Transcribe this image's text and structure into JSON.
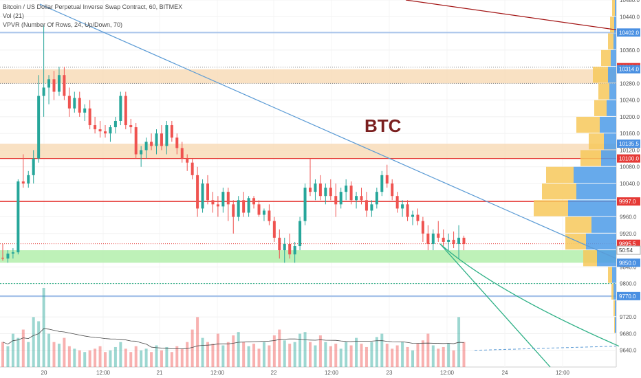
{
  "header": {
    "symbol_line": "Bitcoin / US Dollar Perpetual Inverse Swap Contract, 60, BITMEX",
    "vol_line": "Vol (21)",
    "vpvr_line": "VPVR (Number Of Rows, 24, Up/Down, 70)"
  },
  "annotation": {
    "text": "BTC"
  },
  "colors": {
    "up": "#26a69a",
    "down": "#ef5350",
    "support_fill": "#b7f0b0",
    "resistance_fill": "#f8dcb8",
    "trendline": "#5b9bd5",
    "red_line": "#e53935",
    "dark_red_line": "#a31515",
    "blue_line": "#a9c4ea",
    "green_line": "#2eb086"
  },
  "chart_data": {
    "type": "candlestick",
    "title": "Bitcoin / US Dollar Perpetual Inverse Swap Contract, 60, BITMEX",
    "ylim": [
      9600,
      10480
    ],
    "y_ticks": [
      "10480.0",
      "10440.0",
      "10360.0",
      "10280.0",
      "10240.0",
      "10200.0",
      "10160.0",
      "10120.0",
      "10080.0",
      "10040.0",
      "9960.0",
      "9920.0",
      "9840.0",
      "9800.0",
      "9720.0",
      "9680.0",
      "9640.0"
    ],
    "x_ticks": [
      "20",
      "12:00",
      "21",
      "12:00",
      "22",
      "12:00",
      "23",
      "12:00",
      "24",
      "12:00"
    ],
    "price_tags": [
      {
        "label": "10402.0",
        "kind": "blue"
      },
      {
        "label": "10319.0",
        "kind": "red"
      },
      {
        "label": "10314.0",
        "kind": "blue"
      },
      {
        "label": "10135.5",
        "kind": "blue"
      },
      {
        "label": "10100.0",
        "kind": "red"
      },
      {
        "label": "9997.0",
        "kind": "red"
      },
      {
        "label": "9895.5",
        "kind": "red"
      },
      {
        "label": "50:54",
        "kind": "white"
      },
      {
        "label": "9850.0",
        "kind": "blue"
      },
      {
        "label": "9770.0",
        "kind": "blue"
      }
    ],
    "price_tag_values": [
      10402,
      10319,
      10314,
      10135.5,
      10100,
      9997,
      9895.5,
      9880,
      9850,
      9770
    ],
    "ohlc": [
      [
        9862,
        9895,
        9855,
        9860
      ],
      [
        9860,
        9880,
        9850,
        9872
      ],
      [
        9872,
        9885,
        9860,
        9875
      ],
      [
        9875,
        10050,
        9870,
        10045
      ],
      [
        10045,
        10110,
        10030,
        10040
      ],
      [
        10040,
        10070,
        10030,
        10060
      ],
      [
        10060,
        10120,
        10040,
        10100
      ],
      [
        10100,
        10300,
        10090,
        10250
      ],
      [
        10250,
        10420,
        10200,
        10270
      ],
      [
        10270,
        10300,
        10230,
        10290
      ],
      [
        10290,
        10310,
        10240,
        10260
      ],
      [
        10260,
        10320,
        10250,
        10300
      ],
      [
        10300,
        10320,
        10240,
        10250
      ],
      [
        10250,
        10270,
        10200,
        10220
      ],
      [
        10220,
        10260,
        10210,
        10245
      ],
      [
        10245,
        10260,
        10200,
        10210
      ],
      [
        10210,
        10230,
        10190,
        10220
      ],
      [
        10220,
        10240,
        10170,
        10180
      ],
      [
        10180,
        10200,
        10160,
        10170
      ],
      [
        10170,
        10190,
        10150,
        10165
      ],
      [
        10165,
        10180,
        10150,
        10160
      ],
      [
        10160,
        10180,
        10140,
        10175
      ],
      [
        10175,
        10200,
        10160,
        10190
      ],
      [
        10190,
        10260,
        10180,
        10250
      ],
      [
        10250,
        10260,
        10170,
        10180
      ],
      [
        10180,
        10195,
        10160,
        10175
      ],
      [
        10175,
        10185,
        10100,
        10110
      ],
      [
        10110,
        10130,
        10080,
        10120
      ],
      [
        10120,
        10150,
        10100,
        10140
      ],
      [
        10140,
        10160,
        10120,
        10130
      ],
      [
        10130,
        10170,
        10110,
        10160
      ],
      [
        10160,
        10180,
        10120,
        10130
      ],
      [
        10130,
        10190,
        10110,
        10180
      ],
      [
        10180,
        10190,
        10140,
        10150
      ],
      [
        10150,
        10160,
        10110,
        10125
      ],
      [
        10125,
        10140,
        10090,
        10100
      ],
      [
        10100,
        10110,
        10070,
        10090
      ],
      [
        10090,
        10100,
        10050,
        10060
      ],
      [
        10060,
        10080,
        9960,
        9980
      ],
      [
        9980,
        10050,
        9970,
        10040
      ],
      [
        10040,
        10060,
        9990,
        10000
      ],
      [
        10000,
        10020,
        9970,
        9990
      ],
      [
        9990,
        10010,
        9960,
        9985
      ],
      [
        9985,
        10030,
        9970,
        10020
      ],
      [
        10020,
        10030,
        9950,
        9990
      ],
      [
        9990,
        10000,
        9920,
        9960
      ],
      [
        9960,
        10010,
        9950,
        10000
      ],
      [
        10000,
        10020,
        9960,
        9970
      ],
      [
        9970,
        10010,
        9960,
        10005
      ],
      [
        10005,
        10010,
        9980,
        9990
      ],
      [
        9990,
        10000,
        9960,
        9965
      ],
      [
        9965,
        9980,
        9950,
        9975
      ],
      [
        9975,
        9990,
        9940,
        9950
      ],
      [
        9950,
        9960,
        9900,
        9910
      ],
      [
        9910,
        9930,
        9860,
        9880
      ],
      [
        9880,
        9910,
        9850,
        9895
      ],
      [
        9895,
        9920,
        9860,
        9870
      ],
      [
        9870,
        9900,
        9850,
        9890
      ],
      [
        9890,
        9960,
        9880,
        9950
      ],
      [
        9950,
        10040,
        9940,
        10030
      ],
      [
        10030,
        10100,
        10010,
        10020
      ],
      [
        10020,
        10050,
        10000,
        10040
      ],
      [
        10040,
        10060,
        10000,
        10010
      ],
      [
        10010,
        10040,
        9990,
        10030
      ],
      [
        10030,
        10050,
        10000,
        10010
      ],
      [
        10010,
        10040,
        9960,
        9990
      ],
      [
        9990,
        10030,
        9980,
        10020
      ],
      [
        10020,
        10050,
        10000,
        10035
      ],
      [
        10035,
        10045,
        9990,
        10000
      ],
      [
        10000,
        10020,
        9980,
        10010
      ],
      [
        10010,
        10030,
        9990,
        10000
      ],
      [
        10000,
        10020,
        9960,
        9975
      ],
      [
        9975,
        10000,
        9960,
        9990
      ],
      [
        9990,
        10030,
        9980,
        10020
      ],
      [
        10020,
        10070,
        10010,
        10060
      ],
      [
        10060,
        10085,
        10030,
        10040
      ],
      [
        10040,
        10050,
        10000,
        10010
      ],
      [
        10010,
        10020,
        9970,
        9980
      ],
      [
        9980,
        10000,
        9960,
        9990
      ],
      [
        9990,
        10000,
        9950,
        9960
      ],
      [
        9960,
        9975,
        9940,
        9965
      ],
      [
        9965,
        9980,
        9940,
        9950
      ],
      [
        9950,
        9960,
        9900,
        9920
      ],
      [
        9920,
        9940,
        9880,
        9895
      ],
      [
        9895,
        9930,
        9880,
        9920
      ],
      [
        9920,
        9950,
        9900,
        9910
      ],
      [
        9910,
        9930,
        9890,
        9900
      ],
      [
        9900,
        9920,
        9880,
        9905
      ],
      [
        9905,
        9925,
        9885,
        9895
      ],
      [
        9895,
        9940,
        9860,
        9910
      ],
      [
        9910,
        9915,
        9880,
        9895
      ]
    ],
    "volume": [
      30,
      25,
      40,
      35,
      45,
      30,
      60,
      55,
      95,
      40,
      30,
      28,
      35,
      25,
      22,
      20,
      18,
      20,
      22,
      25,
      18,
      20,
      24,
      30,
      22,
      18,
      25,
      20,
      22,
      18,
      26,
      20,
      24,
      18,
      25,
      22,
      30,
      45,
      60,
      35,
      30,
      28,
      40,
      26,
      30,
      38,
      42,
      30,
      25,
      28,
      22,
      30,
      26,
      38,
      45,
      32,
      28,
      30,
      40,
      42,
      30,
      26,
      38,
      30,
      25,
      28,
      22,
      30,
      26,
      35,
      28,
      24,
      30,
      36,
      40,
      28,
      22,
      26,
      30,
      24,
      20,
      28,
      32,
      40,
      26,
      22,
      24,
      28,
      20,
      60,
      30
    ],
    "vpvr": [
      {
        "price": 10460,
        "up": 4,
        "down": 2
      },
      {
        "price": 10420,
        "up": 6,
        "down": 3
      },
      {
        "price": 10380,
        "up": 8,
        "down": 4
      },
      {
        "price": 10340,
        "up": 14,
        "down": 8
      },
      {
        "price": 10300,
        "up": 22,
        "down": 12
      },
      {
        "price": 10260,
        "up": 16,
        "down": 10
      },
      {
        "price": 10220,
        "up": 18,
        "down": 14
      },
      {
        "price": 10180,
        "up": 34,
        "down": 24
      },
      {
        "price": 10140,
        "up": 22,
        "down": 18
      },
      {
        "price": 10100,
        "up": 30,
        "down": 22
      },
      {
        "price": 10060,
        "up": 40,
        "down": 62
      },
      {
        "price": 10020,
        "up": 50,
        "down": 58
      },
      {
        "price": 9980,
        "up": 50,
        "down": 70
      },
      {
        "price": 9940,
        "up": 38,
        "down": 36
      },
      {
        "price": 9900,
        "up": 30,
        "down": 44
      },
      {
        "price": 9860,
        "up": 20,
        "down": 28
      },
      {
        "price": 9820,
        "up": 6,
        "down": 6
      },
      {
        "price": 9780,
        "up": 3,
        "down": 4
      },
      {
        "price": 9740,
        "up": 2,
        "down": 2
      },
      {
        "price": 9700,
        "up": 1,
        "down": 2
      }
    ]
  }
}
